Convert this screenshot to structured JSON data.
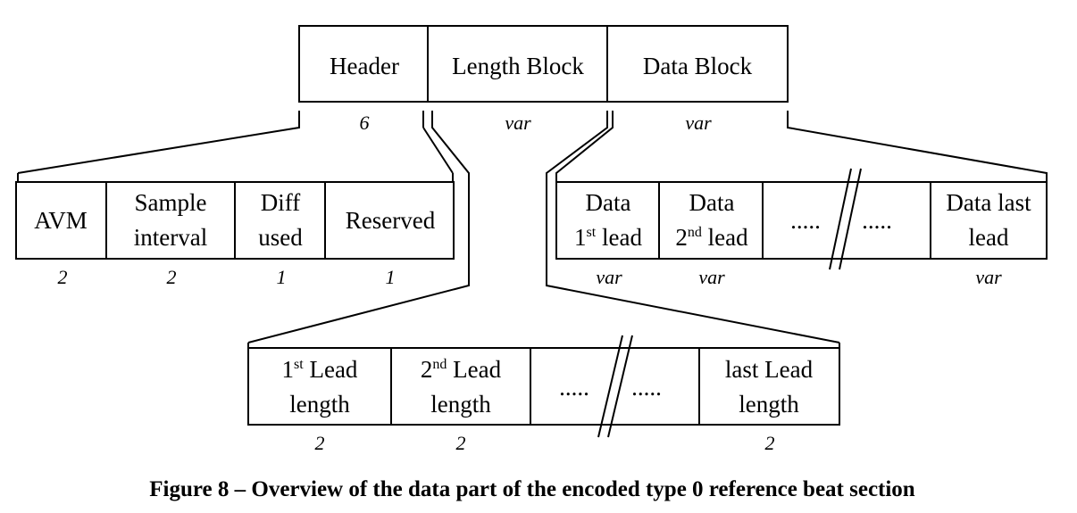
{
  "top": {
    "header": "Header",
    "length_block": "Length Block",
    "data_block": "Data Block",
    "size_header": "6",
    "size_length": "var",
    "size_data": "var"
  },
  "header_fields": {
    "avm": "AVM",
    "sample_1": "Sample",
    "sample_2": "interval",
    "diff_1": "Diff",
    "diff_2": "used",
    "reserved": "Reserved",
    "size_avm": "2",
    "size_sample": "2",
    "size_diff": "1",
    "size_reserved": "1"
  },
  "data_fields": {
    "first_1": "Data",
    "first_num": "1",
    "first_sup": "st",
    "first_word": " lead",
    "second_1": "Data",
    "second_num": "2",
    "second_sup": "nd",
    "second_word": " lead",
    "ellipsis_a": ".....",
    "ellipsis_b": ".....",
    "last_1": "Data last",
    "last_2": "lead",
    "size_first": "var",
    "size_second": "var",
    "size_last": "var"
  },
  "length_fields": {
    "first_num": "1",
    "first_sup": "st",
    "first_word": " Lead",
    "first_2": "length",
    "second_num": "2",
    "second_sup": "nd",
    "second_word": " Lead",
    "second_2": "length",
    "ellipsis_a": ".....",
    "ellipsis_b": ".....",
    "last_1": "last Lead",
    "last_2": "length",
    "size_first": "2",
    "size_second": "2",
    "size_last": "2"
  },
  "caption": "Figure 8 – Overview of the data part of  the encoded type 0 reference beat section"
}
